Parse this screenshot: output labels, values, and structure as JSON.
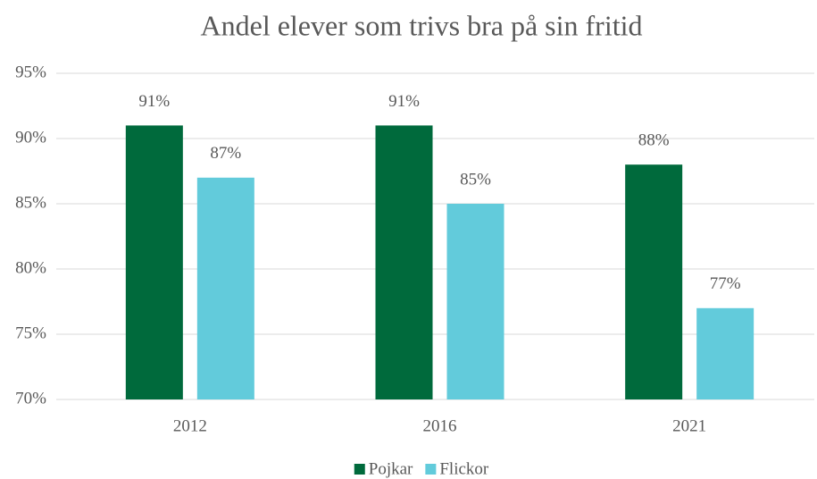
{
  "chart_data": {
    "type": "bar",
    "title": "Andel elever som trivs bra på sin fritid",
    "categories": [
      "2012",
      "2016",
      "2021"
    ],
    "series": [
      {
        "name": "Pojkar",
        "color": "#006a3c",
        "values": [
          91,
          91,
          88
        ],
        "value_labels": [
          "91%",
          "91%",
          "88%"
        ]
      },
      {
        "name": "Flickor",
        "color": "#62cbdb",
        "values": [
          87,
          85,
          77
        ],
        "value_labels": [
          "87%",
          "85%",
          "77%"
        ]
      }
    ],
    "ylim": [
      70,
      95
    ],
    "yticks": [
      {
        "value": 70,
        "label": "70%"
      },
      {
        "value": 75,
        "label": "75%"
      },
      {
        "value": 80,
        "label": "80%"
      },
      {
        "value": 85,
        "label": "85%"
      },
      {
        "value": 90,
        "label": "90%"
      },
      {
        "value": 95,
        "label": "95%"
      }
    ],
    "grid": true,
    "legend": "bottom"
  }
}
